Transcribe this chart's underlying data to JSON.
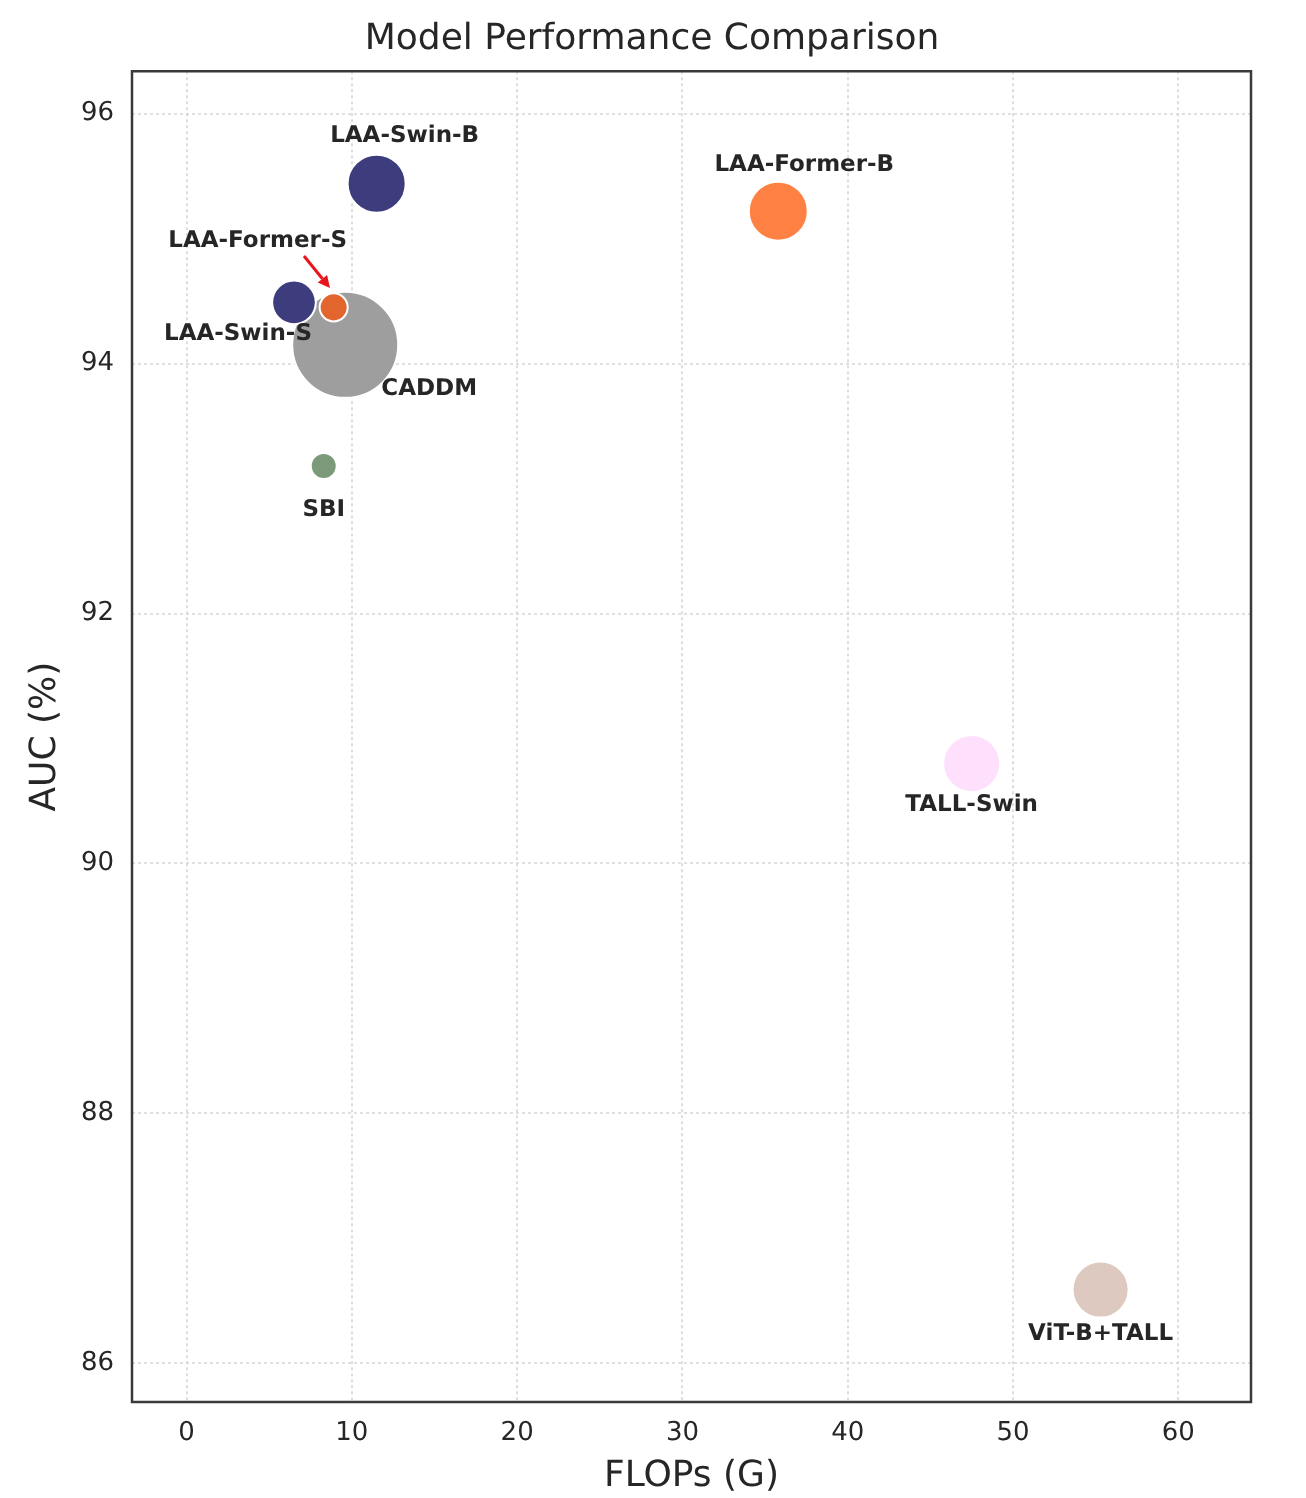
{
  "chart_data": {
    "type": "bubble",
    "title": "Model Performance Comparison",
    "xlabel": "FLOPs (G)",
    "ylabel": "AUC (%)",
    "xlim": [
      -3.3,
      64.4
    ],
    "ylim": [
      85.69,
      96.34
    ],
    "xticks": [
      0,
      10,
      20,
      30,
      40,
      50,
      60
    ],
    "yticks": [
      86,
      88,
      90,
      92,
      94,
      96
    ],
    "grid": true,
    "marker": "circle",
    "series": [
      {
        "name": "LAA-Swin-B",
        "color": "#3d3d7d",
        "x": [
          11.5
        ],
        "values": [
          95.44
        ],
        "sizes": [
          0.3
        ]
      },
      {
        "name": "LAA-Former-B",
        "color": "#fe8043",
        "x": [
          35.8
        ],
        "values": [
          95.22
        ],
        "sizes": [
          0.31
        ]
      },
      {
        "name": "LAA-Former-S",
        "color": "#e2652e",
        "x": [
          8.9
        ],
        "values": [
          94.45
        ],
        "sizes": [
          0.07
        ]
      },
      {
        "name": "LAA-Swin-S",
        "color": "#3d3d7d",
        "x": [
          6.5
        ],
        "values": [
          94.49
        ],
        "sizes": [
          0.17
        ]
      },
      {
        "name": "CADDM",
        "color": "#9e9e9e",
        "x": [
          9.6
        ],
        "values": [
          94.15
        ],
        "sizes": [
          1
        ]
      },
      {
        "name": "SBI",
        "color": "#7b9a7a",
        "x": [
          8.3
        ],
        "values": [
          93.18
        ],
        "sizes": [
          0.06
        ]
      },
      {
        "name": "TALL-Swin",
        "color": "#ffe0fc",
        "x": [
          47.5
        ],
        "values": [
          90.8
        ],
        "sizes": [
          0.29
        ]
      },
      {
        "name": "ViT-B+TALL",
        "color": "#ddc9c0",
        "x": [
          55.3
        ],
        "values": [
          86.59
        ],
        "sizes": [
          0.28
        ]
      }
    ]
  }
}
